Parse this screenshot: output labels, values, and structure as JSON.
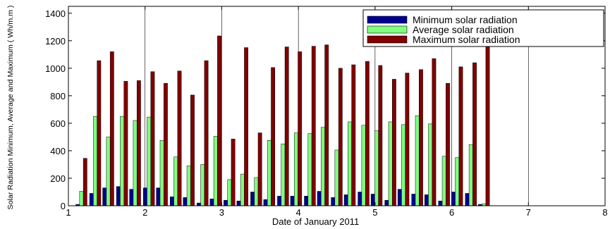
{
  "chart_data": {
    "type": "bar",
    "title": "",
    "xlabel": "Date of January 2011",
    "ylabel": "Solar Radiation Minimum, Average and Maximum ( Wh/m.m )",
    "xlim": [
      1,
      8
    ],
    "ylim": [
      0,
      1450
    ],
    "xticks": [
      "1",
      "2",
      "3",
      "4",
      "5",
      "6",
      "7",
      "8"
    ],
    "yticks": [
      "0",
      "200",
      "400",
      "600",
      "800",
      "1000",
      "1200",
      "1400"
    ],
    "grid": "x-major",
    "legend_position": "top-right",
    "x": [
      1.17,
      1.35,
      1.52,
      1.7,
      1.87,
      2.05,
      2.22,
      2.4,
      2.57,
      2.75,
      2.92,
      3.1,
      3.27,
      3.45,
      3.62,
      3.8,
      3.97,
      4.15,
      4.32,
      4.5,
      4.67,
      4.85,
      5.02,
      5.2,
      5.37,
      5.55,
      5.72,
      5.9,
      6.07,
      6.25,
      6.42,
      6.6,
      6.77,
      6.95,
      7.12
    ],
    "series": [
      {
        "name": "Minimum solar radiation",
        "color": "#00008f",
        "values": [
          10,
          90,
          130,
          140,
          120,
          130,
          130,
          65,
          60,
          20,
          50,
          40,
          35,
          100,
          45,
          70,
          70,
          70,
          105,
          60,
          80,
          100,
          85,
          40,
          120,
          85,
          80,
          35,
          100,
          90,
          10,
          0,
          0,
          0,
          0
        ]
      },
      {
        "name": "Average solar radiation",
        "color": "#80ff80",
        "values": [
          105,
          650,
          500,
          650,
          620,
          645,
          475,
          355,
          290,
          300,
          505,
          190,
          230,
          205,
          475,
          450,
          530,
          525,
          570,
          405,
          610,
          585,
          545,
          610,
          590,
          655,
          595,
          360,
          350,
          445,
          15,
          0,
          0,
          0,
          0
        ]
      },
      {
        "name": "Maximum solar radiation",
        "color": "#800000",
        "values": [
          345,
          1055,
          1120,
          905,
          910,
          975,
          890,
          980,
          805,
          1055,
          1235,
          485,
          1150,
          530,
          1005,
          1155,
          1120,
          1160,
          1170,
          1000,
          1025,
          1050,
          1020,
          920,
          965,
          990,
          1070,
          890,
          1010,
          1040,
          1165,
          0,
          0,
          0,
          0
        ]
      }
    ]
  }
}
